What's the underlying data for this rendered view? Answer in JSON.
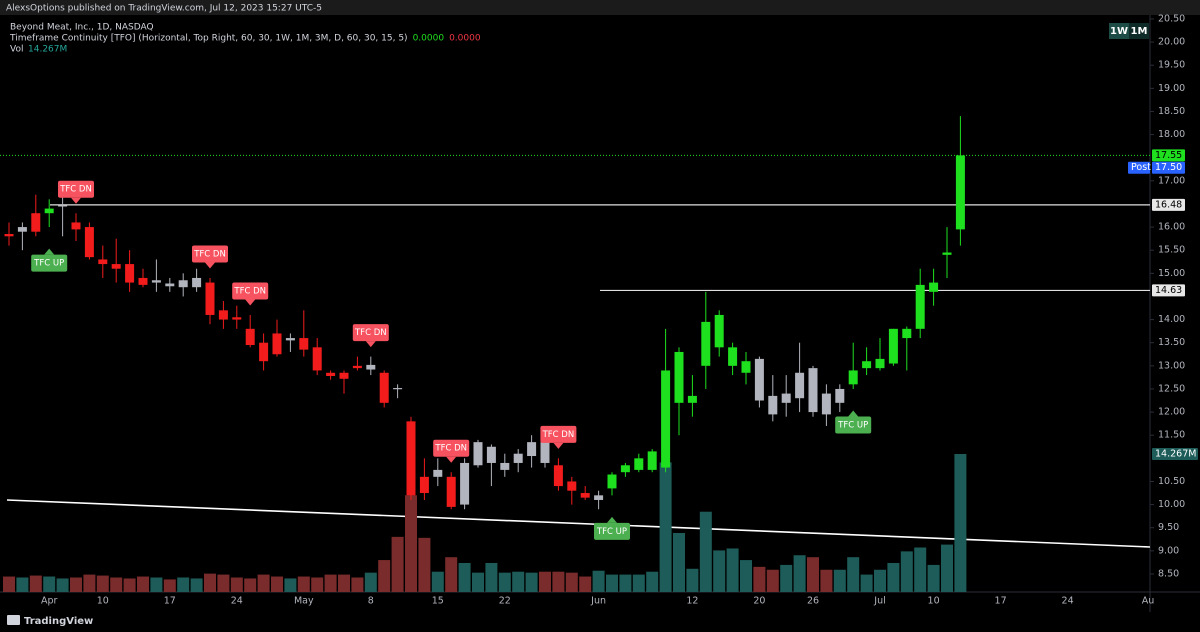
{
  "header": {
    "publisher_line": "AlexsOptions published on TradingView.com, Jul 12, 2023 15:27 UTC-5",
    "timeframe_badges": [
      "1W",
      "1M"
    ],
    "footer": "TradingView"
  },
  "chart_data": {
    "type": "candlestick",
    "title": "Beyond Meat, Inc., 1D, NASDAQ",
    "indicator": {
      "name": "Timeframe Continuity [TFO] (Horizontal, Top Right, 60, 30, 1W, 1M, 3M, D, 60, 30, 15, 5)",
      "values": [
        "0.0000",
        "0.0000"
      ],
      "colors": [
        "#1ee01e",
        "#f23645"
      ]
    },
    "categories": [
      null,
      null,
      null,
      "Apr",
      null,
      null,
      null,
      "10",
      null,
      null,
      null,
      null,
      "17",
      null,
      null,
      null,
      null,
      "24",
      null,
      null,
      null,
      null,
      "May",
      null,
      null,
      null,
      null,
      "8",
      null,
      null,
      null,
      null,
      "15",
      null,
      null,
      null,
      null,
      "22",
      null,
      null,
      null,
      null,
      null,
      null,
      "Jun",
      null,
      null,
      null,
      null,
      null,
      null,
      "12",
      null,
      null,
      null,
      null,
      "20",
      null,
      null,
      null,
      "26",
      null,
      null,
      null,
      null,
      "Jul",
      null,
      null,
      null,
      "10",
      null,
      null,
      null,
      null,
      "17",
      null,
      null,
      null,
      null,
      "24",
      null,
      null,
      null,
      null,
      null,
      "Au"
    ],
    "open": [
      15.85,
      15.9,
      16.3,
      16.3,
      16.45,
      16.1,
      16.0,
      15.3,
      15.2,
      15.2,
      14.9,
      14.8,
      14.78,
      14.7,
      14.7,
      14.8,
      14.2,
      14.05,
      13.8,
      13.5,
      13.7,
      13.55,
      13.6,
      13.4,
      12.85,
      12.85,
      13.0,
      12.92,
      12.85,
      12.52,
      11.8,
      10.6,
      10.6,
      10.6,
      10.0,
      10.85,
      10.9,
      10.75,
      10.9,
      11.05,
      11.35,
      10.85,
      10.5,
      10.25,
      10.1,
      10.35,
      10.7,
      10.75,
      10.75,
      10.8,
      12.2,
      12.2,
      13.0,
      13.4,
      13.0,
      12.85,
      13.15,
      12.35,
      12.2,
      12.3,
      12.95,
      12.4,
      12.2,
      12.6,
      12.95,
      12.95,
      13.05,
      13.6,
      13.8,
      14.6,
      15.4,
      15.95,
      null,
      null,
      null,
      null,
      null,
      null,
      null,
      null,
      null,
      null,
      null,
      null,
      null,
      null
    ],
    "high": [
      16.1,
      16.1,
      16.7,
      16.6,
      16.7,
      16.3,
      16.1,
      15.6,
      15.75,
      15.5,
      15.1,
      15.3,
      14.9,
      15.0,
      15.1,
      14.9,
      14.4,
      14.3,
      14.1,
      13.7,
      14.0,
      13.7,
      14.2,
      13.6,
      12.9,
      12.9,
      13.2,
      13.2,
      12.9,
      12.6,
      11.9,
      11.0,
      11.0,
      10.7,
      11.0,
      11.4,
      11.3,
      11.1,
      11.2,
      11.5,
      11.5,
      11.0,
      10.6,
      10.4,
      10.3,
      10.7,
      10.9,
      11.1,
      11.2,
      13.8,
      13.4,
      12.8,
      14.6,
      14.2,
      13.5,
      13.3,
      13.2,
      12.8,
      12.8,
      13.5,
      13.0,
      12.6,
      12.6,
      13.5,
      13.4,
      13.6,
      13.8,
      13.85,
      15.1,
      15.1,
      16.0,
      18.4,
      null,
      null,
      null,
      null,
      null,
      null,
      null,
      null,
      null,
      null,
      null,
      null,
      null,
      null
    ],
    "low": [
      15.6,
      15.5,
      15.8,
      16.0,
      15.8,
      15.7,
      15.3,
      14.9,
      14.8,
      14.6,
      14.7,
      14.6,
      14.6,
      14.5,
      14.6,
      13.9,
      13.8,
      13.8,
      13.4,
      12.9,
      13.2,
      13.3,
      13.2,
      12.8,
      12.7,
      12.4,
      12.9,
      12.8,
      12.1,
      12.3,
      10.1,
      10.1,
      10.4,
      9.9,
      9.9,
      10.8,
      10.4,
      10.6,
      10.7,
      10.8,
      10.8,
      10.3,
      10.0,
      10.1,
      9.9,
      10.2,
      10.6,
      10.7,
      10.7,
      10.7,
      11.5,
      11.9,
      12.5,
      13.2,
      12.8,
      12.6,
      12.1,
      11.8,
      11.9,
      12.0,
      11.9,
      11.7,
      12.0,
      12.5,
      12.8,
      12.9,
      13.0,
      12.9,
      13.6,
      14.3,
      14.9,
      15.6,
      null,
      null,
      null,
      null,
      null,
      null,
      null,
      null,
      null,
      null,
      null,
      null,
      null,
      null
    ],
    "close": [
      15.8,
      16.0,
      15.9,
      16.4,
      16.47,
      15.95,
      15.35,
      15.2,
      15.1,
      14.8,
      14.75,
      14.85,
      14.72,
      14.85,
      14.9,
      14.1,
      14.0,
      14.0,
      13.45,
      13.1,
      13.25,
      13.6,
      13.35,
      12.9,
      12.78,
      12.72,
      12.95,
      13.02,
      12.2,
      12.5,
      10.2,
      10.25,
      10.75,
      9.95,
      10.9,
      11.35,
      11.25,
      10.9,
      11.1,
      11.35,
      10.9,
      10.4,
      10.3,
      10.15,
      10.2,
      10.65,
      10.85,
      11.0,
      11.15,
      12.9,
      13.3,
      12.35,
      13.95,
      14.1,
      13.4,
      13.1,
      12.25,
      11.95,
      12.4,
      12.85,
      12.0,
      11.95,
      12.5,
      12.9,
      13.1,
      13.15,
      13.8,
      13.8,
      14.75,
      14.8,
      15.45,
      17.55,
      null,
      null,
      null,
      null,
      null,
      null,
      null,
      null,
      null,
      null,
      null,
      null,
      null,
      null
    ],
    "colors": [
      "#f21c1c",
      "#b2b5be",
      "#f21c1c",
      "#1ee01e",
      "#b2b5be",
      "#f21c1c",
      "#f21c1c",
      "#f21c1c",
      "#f21c1c",
      "#f21c1c",
      "#f21c1c",
      "#b2b5be",
      "#b2b5be",
      "#b2b5be",
      "#b2b5be",
      "#f21c1c",
      "#f21c1c",
      "#f21c1c",
      "#f21c1c",
      "#f21c1c",
      "#f21c1c",
      "#b2b5be",
      "#f21c1c",
      "#f21c1c",
      "#f21c1c",
      "#f21c1c",
      "#f21c1c",
      "#b2b5be",
      "#f21c1c",
      "#b2b5be",
      "#f21c1c",
      "#f21c1c",
      "#b2b5be",
      "#f21c1c",
      "#b2b5be",
      "#b2b5be",
      "#b2b5be",
      "#b2b5be",
      "#b2b5be",
      "#b2b5be",
      "#b2b5be",
      "#f21c1c",
      "#f21c1c",
      "#f21c1c",
      "#b2b5be",
      "#1ee01e",
      "#1ee01e",
      "#1ee01e",
      "#1ee01e",
      "#1ee01e",
      "#1ee01e",
      "#1ee01e",
      "#1ee01e",
      "#1ee01e",
      "#1ee01e",
      "#1ee01e",
      "#b2b5be",
      "#b2b5be",
      "#b2b5be",
      "#b2b5be",
      "#b2b5be",
      "#b2b5be",
      "#b2b5be",
      "#1ee01e",
      "#1ee01e",
      "#1ee01e",
      "#1ee01e",
      "#1ee01e",
      "#1ee01e",
      "#1ee01e",
      "#1ee01e",
      "#1ee01e",
      null,
      null,
      null,
      null,
      null,
      null,
      null,
      null,
      null,
      null,
      null,
      null,
      null,
      null
    ],
    "signals": [
      null,
      null,
      null,
      "TFC UP",
      null,
      "TFC DN",
      null,
      null,
      null,
      null,
      null,
      null,
      null,
      null,
      null,
      "TFC DN",
      null,
      null,
      "TFC DN",
      null,
      null,
      null,
      null,
      null,
      null,
      null,
      null,
      "TFC DN",
      null,
      null,
      null,
      null,
      null,
      "TFC DN",
      null,
      null,
      null,
      null,
      null,
      null,
      null,
      "TFC DN",
      null,
      null,
      null,
      "TFC UP",
      null,
      null,
      null,
      null,
      null,
      null,
      null,
      null,
      null,
      null,
      null,
      null,
      null,
      null,
      null,
      null,
      null,
      "TFC UP",
      null,
      null,
      null,
      null,
      null,
      null,
      null,
      null,
      null,
      null,
      null,
      null,
      null,
      null,
      null,
      null,
      null,
      null,
      null,
      null,
      null,
      null
    ],
    "signal_colors": {
      "TFC UP": "#4caf50",
      "TFC DN": "#f7525f"
    },
    "volume": {
      "name": "Vol",
      "values": [
        1.6,
        1.5,
        1.7,
        1.6,
        1.4,
        1.5,
        1.8,
        1.7,
        1.5,
        1.4,
        1.6,
        1.5,
        1.3,
        1.5,
        1.4,
        1.9,
        1.8,
        1.5,
        1.4,
        1.8,
        1.6,
        1.4,
        1.6,
        1.5,
        1.8,
        1.8,
        1.5,
        2.0,
        3.3,
        5.7,
        10.0,
        5.6,
        2.1,
        3.6,
        3.0,
        2.0,
        3.0,
        2.0,
        2.1,
        2.0,
        2.1,
        2.1,
        2.0,
        1.6,
        2.2,
        1.8,
        1.8,
        1.8,
        2.1,
        13.4,
        6.1,
        2.4,
        8.3,
        4.3,
        4.5,
        3.3,
        2.6,
        2.3,
        2.8,
        3.8,
        3.6,
        2.3,
        2.3,
        3.6,
        1.8,
        2.3,
        3.0,
        4.2,
        4.6,
        2.8,
        4.9,
        14.267,
        null,
        null,
        null,
        null,
        null,
        null,
        null,
        null,
        null,
        null,
        null,
        null,
        null,
        null
      ],
      "last_value_label": "14.267M",
      "colors": {
        "up": "#1d5c58",
        "down": "#7a2b2b"
      }
    },
    "levels": [
      16.48,
      14.63
    ],
    "post_market": {
      "name": "Post",
      "value": 17.5,
      "value_label": "17.50"
    },
    "ylim": [
      8.11,
      20.65
    ],
    "yticks": [
      {
        "value": 8.5,
        "label": "8.50"
      },
      {
        "value": 9,
        "label": "9.00"
      },
      {
        "value": 9.5,
        "label": "9.50"
      },
      {
        "value": 10,
        "label": "10.00"
      },
      {
        "value": 10.5,
        "label": "10.50"
      },
      {
        "value": 11.5,
        "label": "11.50"
      },
      {
        "value": 12,
        "label": "12.00"
      },
      {
        "value": 12.5,
        "label": "12.50"
      },
      {
        "value": 13,
        "label": "13.00"
      },
      {
        "value": 13.5,
        "label": "13.50"
      },
      {
        "value": 14,
        "label": "14.00"
      },
      {
        "value": 15,
        "label": "15.00"
      },
      {
        "value": 15.5,
        "label": "15.50"
      },
      {
        "value": 16,
        "label": "16.00"
      },
      {
        "value": 17,
        "label": "17.00"
      },
      {
        "value": 18,
        "label": "18.00"
      },
      {
        "value": 18.5,
        "label": "18.50"
      },
      {
        "value": 19,
        "label": "19.00"
      },
      {
        "value": 19.5,
        "label": "19.50"
      },
      {
        "value": 20,
        "label": "20.00"
      },
      {
        "value": 20.5,
        "label": "20.50"
      }
    ]
  }
}
